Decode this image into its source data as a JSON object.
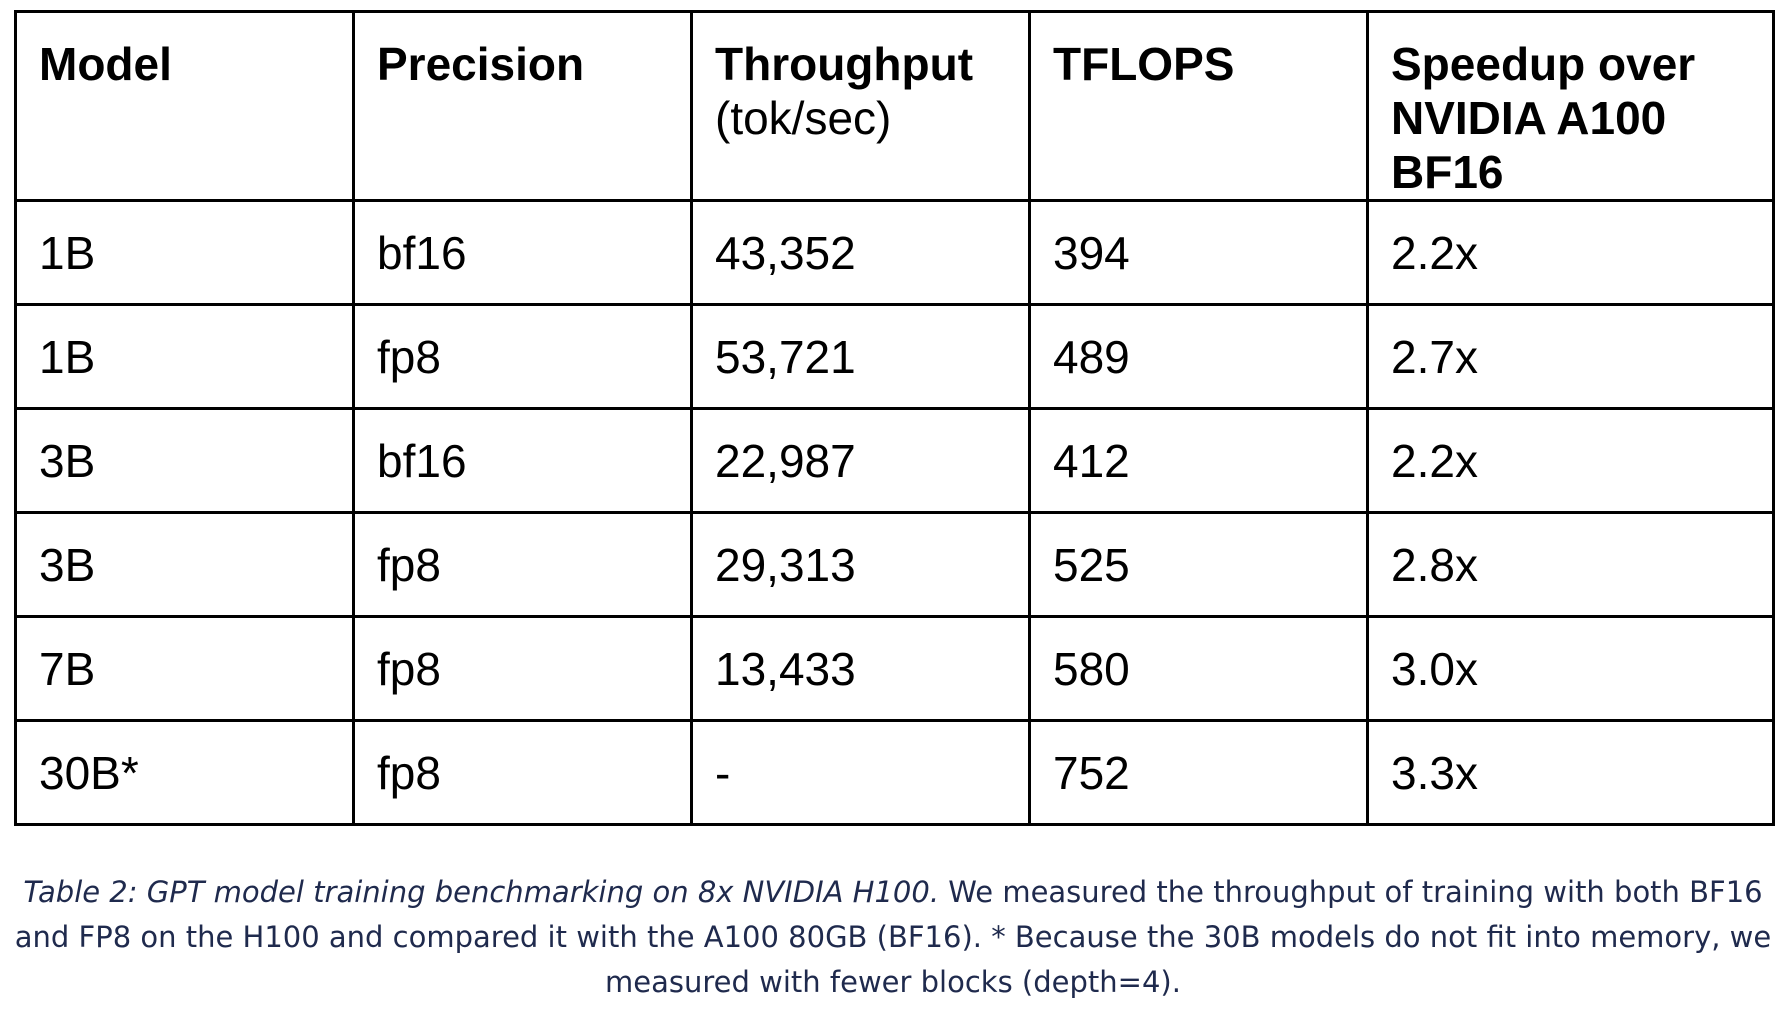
{
  "table": {
    "headers": [
      {
        "label": "Model",
        "sub": ""
      },
      {
        "label": "Precision",
        "sub": ""
      },
      {
        "label": "Throughput",
        "sub": "(tok/sec)"
      },
      {
        "label": "TFLOPS",
        "sub": ""
      },
      {
        "label": "Speedup over NVIDIA A100 BF16",
        "sub": ""
      }
    ],
    "rows": [
      [
        "1B",
        "bf16",
        "43,352",
        "394",
        "2.2x"
      ],
      [
        "1B",
        "fp8",
        "53,721",
        "489",
        "2.7x"
      ],
      [
        "3B",
        "bf16",
        "22,987",
        "412",
        "2.2x"
      ],
      [
        "3B",
        "fp8",
        "29,313",
        "525",
        "2.8x"
      ],
      [
        "7B",
        "fp8",
        "13,433",
        "580",
        "3.0x"
      ],
      [
        "30B*",
        "fp8",
        "-",
        "752",
        "3.3x"
      ]
    ]
  },
  "caption": {
    "lead": "Table 2: GPT model training benchmarking on 8x NVIDIA H100.",
    "body": " We measured the throughput of training with both BF16 and FP8 on the H100 and compared it with the A100 80GB (BF16). * Because the 30B models do not fit into memory, we measured with fewer blocks (depth=4)."
  },
  "colors": {
    "text": "#000000",
    "border": "#000000",
    "caption": "#1f2a4d"
  }
}
